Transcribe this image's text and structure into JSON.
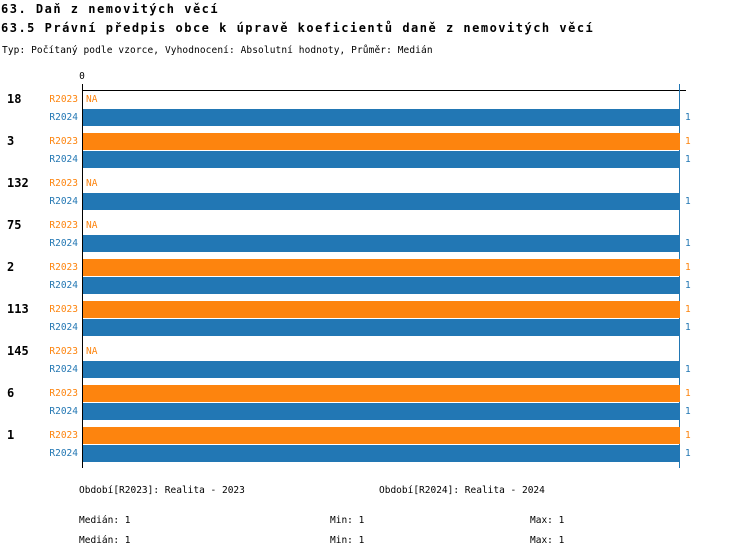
{
  "header": {
    "title": "63. Daň z nemovitých věcí",
    "subtitle": "63.5 Právní předpis obce k úpravě koeficientů daně z nemovitých věcí",
    "meta": "Typ: Počítaný podle vzorce, Vyhodnocení: Absolutní hodnoty, Průměr: Medián"
  },
  "colors": {
    "r2023_orange": "#FD840E",
    "r2024_blue": "#2277B4",
    "axis_black": "#000000"
  },
  "chart_data": {
    "type": "bar",
    "orientation": "horizontal",
    "categories": [
      "18",
      "3",
      "132",
      "75",
      "2",
      "113",
      "145",
      "6",
      "1"
    ],
    "series": [
      {
        "name": "R2023",
        "period": "Realita - 2023",
        "color": "#FD840E",
        "values": [
          null,
          1,
          null,
          null,
          1,
          1,
          null,
          1,
          1
        ],
        "median": 1,
        "min": 1,
        "max": 1
      },
      {
        "name": "R2024",
        "period": "Realita - 2024",
        "color": "#2277B4",
        "values": [
          1,
          1,
          1,
          1,
          1,
          1,
          1,
          1,
          1
        ],
        "median": 1,
        "min": 1,
        "max": 1
      }
    ],
    "na_label": "NA",
    "xlim": [
      0,
      1.09
    ],
    "x_ticks": [
      {
        "value": 0,
        "label": "0"
      }
    ],
    "reference_line": {
      "value": 1,
      "color": "#2277B4"
    },
    "grid": false,
    "legend_position": "bottom"
  },
  "legend": {
    "r2023": {
      "title": "Období[R2023]: Realita - 2023",
      "stats": {
        "median": "Medián: 1",
        "min": "Min: 1",
        "max": "Max: 1"
      }
    },
    "r2024": {
      "title": "Období[R2024]: Realita - 2024",
      "stats": {
        "median": "Medián: 1",
        "min": "Min: 1",
        "max": "Max: 1"
      }
    }
  }
}
